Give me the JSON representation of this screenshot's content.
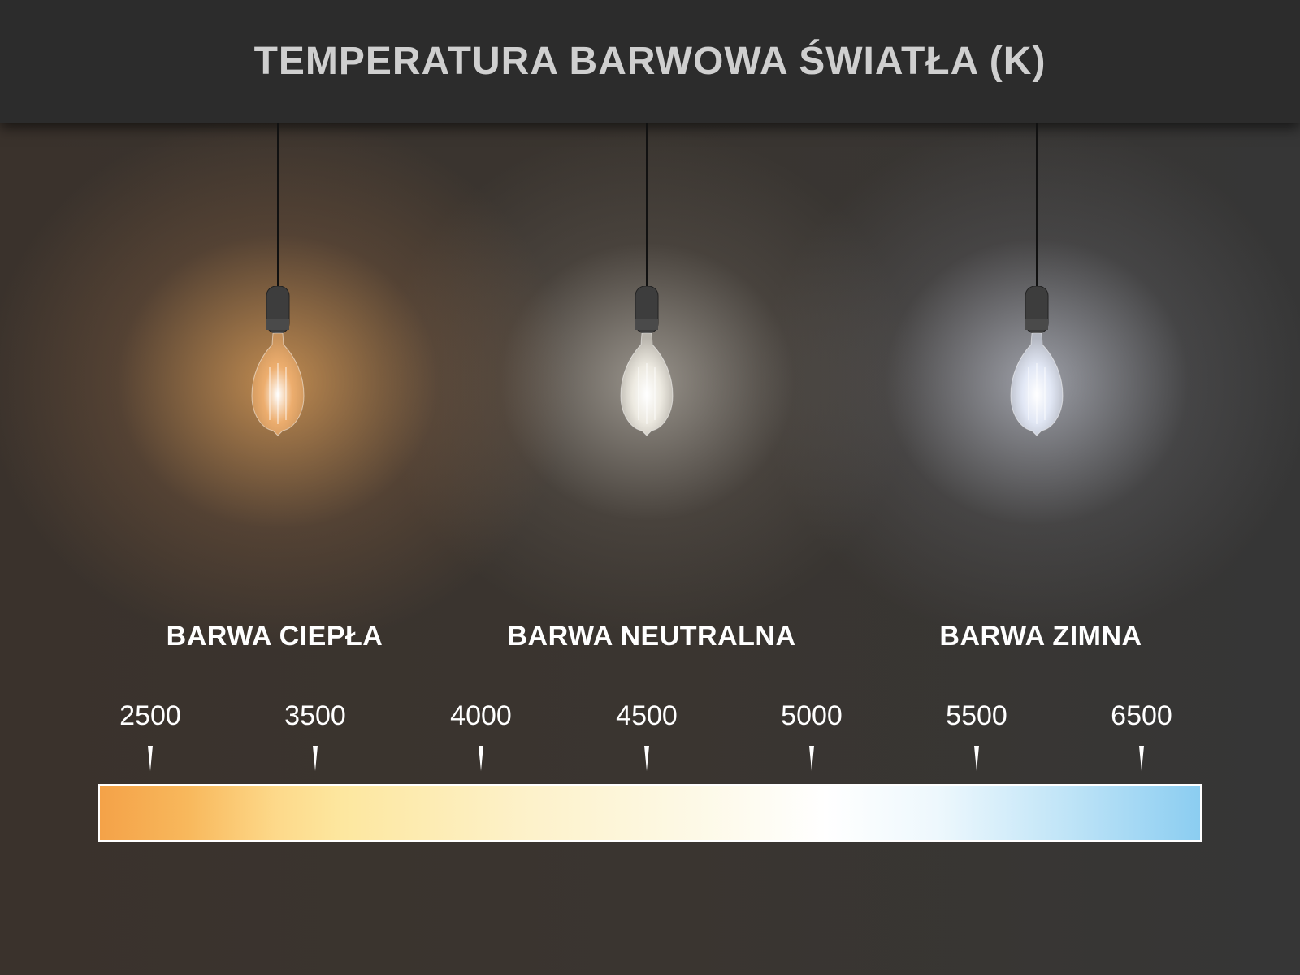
{
  "title": "TEMPERATURA BARWOWA ŚWIATŁA (K)",
  "categories": [
    {
      "label": "BARWA CIEPŁA",
      "glow": "#f0b070"
    },
    {
      "label": "BARWA NEUTRALNA",
      "glow": "#f2efe6"
    },
    {
      "label": "BARWA ZIMNA",
      "glow": "#e6ecfa"
    }
  ],
  "scale": {
    "ticks": [
      "2500",
      "3500",
      "4000",
      "4500",
      "5000",
      "5500",
      "6500"
    ],
    "gradient_colors": [
      "#f4a248",
      "#fde79f",
      "#ffffff",
      "#8bcdf1"
    ]
  }
}
